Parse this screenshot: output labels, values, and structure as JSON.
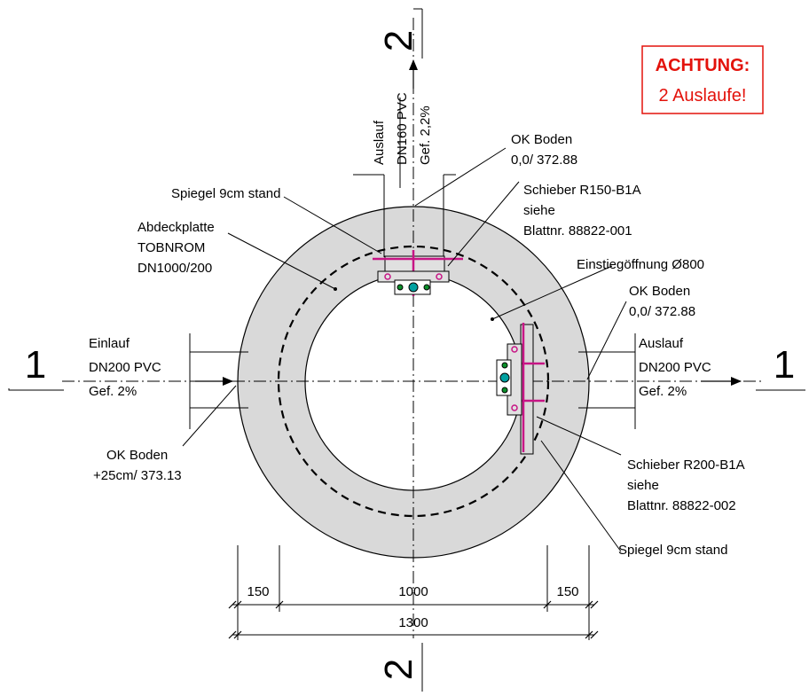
{
  "section_marks": {
    "s1_left": "1",
    "s1_right": "1",
    "s2_top": "2",
    "s2_bottom": "2"
  },
  "warning": {
    "line1": "ACHTUNG:",
    "line2": "2 Auslaufe!",
    "color": "#e3120b"
  },
  "outlet_top": {
    "line1": "Auslauf",
    "line2": "DN160 PVC",
    "line3": "Gef. 2,2%"
  },
  "ok_boden_top": {
    "line1": "OK Boden",
    "line2": "0,0/ 372.88"
  },
  "spiegel_top": "Spiegel 9cm stand",
  "schieber_top": {
    "line1": "Schieber R150-B1A",
    "line2": "siehe",
    "line3": "Blattnr. 88822-001"
  },
  "abdeckplatte": {
    "line1": "Abdeckplatte",
    "line2": "TOBNROM",
    "line3": "DN1000/200"
  },
  "einstieg": "Einstiegöffnung Ø800",
  "ok_boden_right": {
    "line1": "OK Boden",
    "line2": "0,0/ 372.88"
  },
  "inlet": {
    "line1": "Einlauf",
    "line2": "DN200 PVC",
    "line3": "Gef. 2%"
  },
  "outlet_right": {
    "line1": "Auslauf",
    "line2": "DN200 PVC",
    "line3": "Gef. 2%"
  },
  "ok_boden_left": {
    "line1": "OK Boden",
    "line2": "+25cm/ 373.13"
  },
  "schieber_right": {
    "line1": "Schieber R200-B1A",
    "line2": "siehe",
    "line3": "Blattnr. 88822-002"
  },
  "spiegel_right": "Spiegel 9cm stand",
  "dimensions": {
    "left": "150",
    "middle": "1000",
    "right": "150",
    "total": "1300"
  },
  "colors": {
    "ring_fill": "#d9d9d9",
    "fittings": "#c71585",
    "valve_fill": "#e0e0e0"
  }
}
